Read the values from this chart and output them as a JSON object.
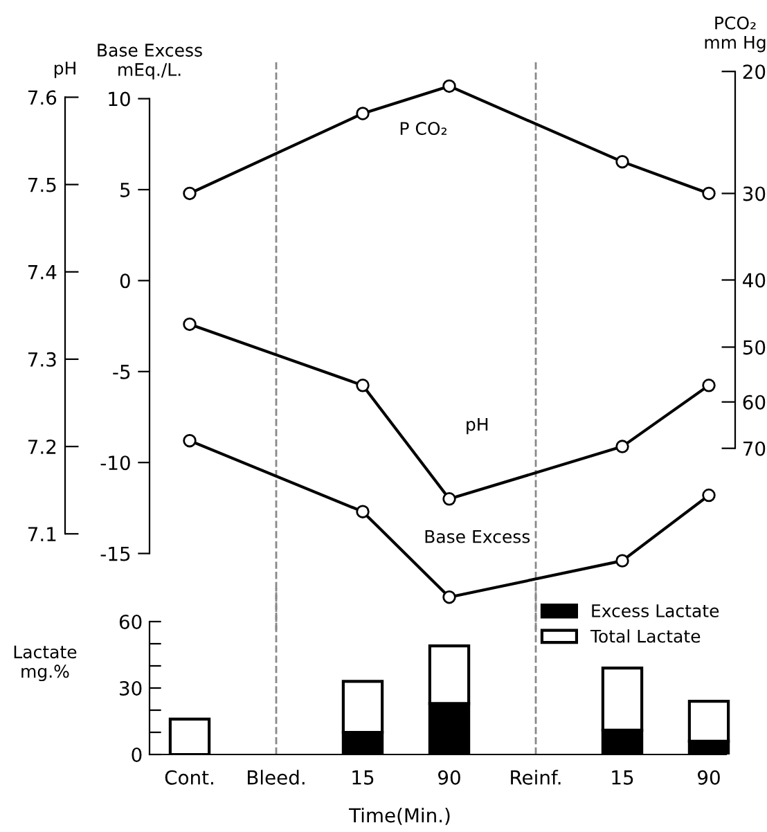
{
  "chart_data": [
    {
      "type": "line",
      "ylabel": "pH",
      "y2label": "Base Excess\nmEq./L.",
      "y3label": "PCO₂\nmm Hg",
      "categories": [
        "Cont.",
        "Bleed.",
        "15",
        "90",
        "Reinf.",
        "15",
        "90"
      ],
      "series": [
        {
          "name": "P CO₂",
          "color": "#000000",
          "axis": "y3",
          "values": [
            30,
            null,
            23,
            21,
            null,
            27,
            30
          ]
        },
        {
          "name": "pH",
          "color": "#000000",
          "values": [
            7.34,
            null,
            7.27,
            7.14,
            null,
            7.2,
            7.27
          ]
        },
        {
          "name": "Base Excess",
          "color": "#000000",
          "axis": "y2",
          "values": [
            -8.8,
            null,
            -12.7,
            -17.4,
            null,
            -15.4,
            -11.8
          ]
        }
      ],
      "ylim": [
        6.99,
        7.64
      ],
      "yticks": [
        7.1,
        7.2,
        7.3,
        7.4,
        7.5,
        7.6
      ],
      "y2lim": [
        -19.2,
        12
      ],
      "y2ticks": [
        -15,
        -10,
        -5,
        0,
        5,
        10
      ],
      "y3lim": [
        128,
        19.4
      ],
      "y3ticks": [
        20,
        30,
        40,
        50,
        60,
        70
      ],
      "log": "y3",
      "marker": "circle",
      "line_style": "solid",
      "grid": false,
      "tick_labels": "y",
      "ref_lines": [
        {
          "axis": "x",
          "value": "Bleed.",
          "line_style": "dashed",
          "color": "#888888"
        },
        {
          "axis": "x",
          "value": "Reinf.",
          "line_style": "dashed",
          "color": "#888888"
        }
      ]
    },
    {
      "type": "bar",
      "stacked": true,
      "ylabel": "Lactate\nmg.%",
      "xlabel": "Time(Min.)",
      "categories": [
        "Cont.",
        "Bleed.",
        "15",
        "90",
        "Reinf.",
        "15",
        "90"
      ],
      "series": [
        {
          "name": "Excess Lactate",
          "color": "#000000",
          "values": [
            null,
            null,
            10,
            23,
            null,
            11,
            6
          ]
        },
        {
          "name": "Total Lactate",
          "color": "#ffffff",
          "values": [
            16,
            null,
            23,
            26,
            null,
            28,
            18
          ]
        }
      ],
      "ylim": [
        0,
        75
      ],
      "yticks": [
        0,
        {
          "value": 10,
          "label": null
        },
        {
          "value": 20,
          "label": null
        },
        30,
        {
          "value": 40,
          "label": null
        },
        {
          "value": 50,
          "label": null
        },
        60
      ],
      "legend": "top right",
      "grid": false,
      "ref_lines": [
        {
          "axis": "x",
          "value": "Bleed.",
          "line_style": "dashed",
          "color": "#888888"
        },
        {
          "axis": "x",
          "value": "Reinf.",
          "line_style": "dashed",
          "color": "#888888"
        }
      ]
    }
  ]
}
